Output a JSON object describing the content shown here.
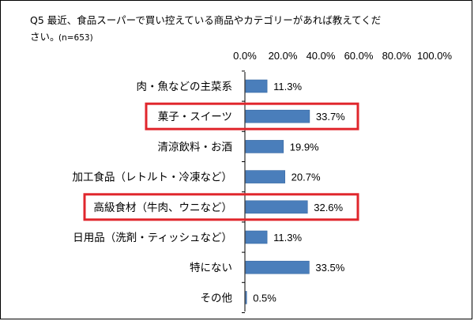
{
  "title": {
    "line1": "Q5 最近、食品スーパーで買い控えている商品やカテゴリーがあれば教えてくだ",
    "line2": "さい。",
    "n": "(n=653)"
  },
  "chart_data": {
    "type": "bar",
    "orientation": "horizontal",
    "categories": [
      "肉・魚などの主菜系",
      "菓子・スイーツ",
      "清涼飲料・お酒",
      "加工食品（レトルト・冷凍など）",
      "高級食材（牛肉、ウニなど）",
      "日用品（洗剤・ティッシュなど）",
      "特にない",
      "その他"
    ],
    "values": [
      11.3,
      33.7,
      19.9,
      20.7,
      32.6,
      11.3,
      33.5,
      0.5
    ],
    "value_labels": [
      "11.3%",
      "33.7%",
      "19.9%",
      "20.7%",
      "32.6%",
      "11.3%",
      "33.5%",
      "0.5%"
    ],
    "xlim": [
      0,
      100
    ],
    "x_ticks": [
      "0.0%",
      "20.0%",
      "40.0%",
      "60.0%",
      "80.0%",
      "100.0%"
    ],
    "x_axis_position": "top",
    "grid": false,
    "legend": "none",
    "highlighted_categories": [
      "菓子・スイーツ",
      "高級食材（牛肉、ウニなど）"
    ],
    "colors": {
      "bar": "#4a7ebb",
      "bar_edge": "#3a6aa3",
      "highlight_box": "#e0262c",
      "axis": "#000000"
    }
  }
}
